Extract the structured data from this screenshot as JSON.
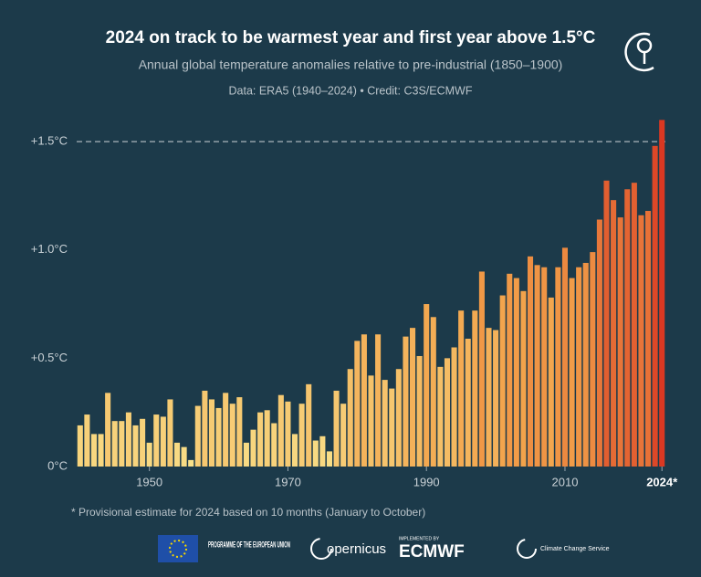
{
  "chart_data": {
    "type": "bar",
    "title": "2024 on track to be warmest year and first year above 1.5°C",
    "subtitle": "Annual global temperature anomalies relative to pre-industrial (1850–1900)",
    "source": "Data: ERA5 (1940–2024)  •  Credit: C3S/ECMWF",
    "note": "* Provisional estimate for 2024 based on 10 months (January to October)",
    "x": [
      1940,
      1941,
      1942,
      1943,
      1944,
      1945,
      1946,
      1947,
      1948,
      1949,
      1950,
      1951,
      1952,
      1953,
      1954,
      1955,
      1956,
      1957,
      1958,
      1959,
      1960,
      1961,
      1962,
      1963,
      1964,
      1965,
      1966,
      1967,
      1968,
      1969,
      1970,
      1971,
      1972,
      1973,
      1974,
      1975,
      1976,
      1977,
      1978,
      1979,
      1980,
      1981,
      1982,
      1983,
      1984,
      1985,
      1986,
      1987,
      1988,
      1989,
      1990,
      1991,
      1992,
      1993,
      1994,
      1995,
      1996,
      1997,
      1998,
      1999,
      2000,
      2001,
      2002,
      2003,
      2004,
      2005,
      2006,
      2007,
      2008,
      2009,
      2010,
      2011,
      2012,
      2013,
      2014,
      2015,
      2016,
      2017,
      2018,
      2019,
      2020,
      2021,
      2022,
      2023,
      2024
    ],
    "values": [
      0.19,
      0.24,
      0.15,
      0.15,
      0.34,
      0.21,
      0.21,
      0.25,
      0.19,
      0.22,
      0.11,
      0.24,
      0.23,
      0.31,
      0.11,
      0.09,
      0.03,
      0.28,
      0.35,
      0.31,
      0.27,
      0.34,
      0.29,
      0.32,
      0.11,
      0.17,
      0.25,
      0.26,
      0.2,
      0.33,
      0.3,
      0.15,
      0.29,
      0.38,
      0.12,
      0.14,
      0.07,
      0.35,
      0.29,
      0.45,
      0.58,
      0.61,
      0.42,
      0.61,
      0.4,
      0.36,
      0.45,
      0.6,
      0.64,
      0.51,
      0.75,
      0.69,
      0.46,
      0.5,
      0.55,
      0.72,
      0.59,
      0.72,
      0.9,
      0.64,
      0.63,
      0.79,
      0.89,
      0.87,
      0.81,
      0.97,
      0.93,
      0.92,
      0.78,
      0.92,
      1.01,
      0.87,
      0.92,
      0.94,
      0.99,
      1.14,
      1.32,
      1.23,
      1.15,
      1.28,
      1.31,
      1.16,
      1.18,
      1.48,
      1.6
    ],
    "colormap": [
      "#f9e38c",
      "#f2a24a",
      "#d8311f"
    ],
    "reference_line": 1.5,
    "xlim": [
      1939.5,
      2024.5
    ],
    "xticks": [
      1950,
      1970,
      1990,
      2010,
      {
        "value": 2024,
        "label": "2024*"
      }
    ],
    "ylim": [
      0,
      1.65
    ],
    "yticks": [
      {
        "value": 0,
        "label": "0°C"
      },
      {
        "value": 0.5,
        "label": "+0.5°C"
      },
      {
        "value": 1.0,
        "label": "+1.0°C"
      },
      {
        "value": 1.5,
        "label": "+1.5°C"
      }
    ]
  },
  "logos": {
    "eu": "PROGRAMME OF THE EUROPEAN UNION",
    "copernicus": "opernicus",
    "ecmwf_tag": "IMPLEMENTED BY",
    "ecmwf": "ECMWF",
    "c3s": "Climate Change Service"
  }
}
